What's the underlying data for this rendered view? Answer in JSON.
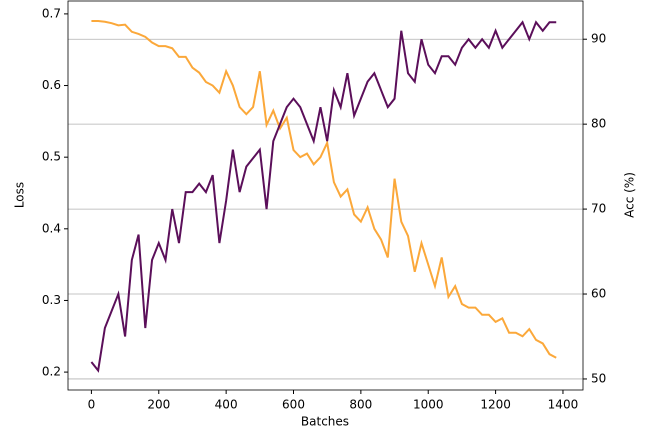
{
  "chart_data": {
    "type": "line",
    "xlabel": "Batches",
    "ylabel": "Loss",
    "y2label": "Acc (%)",
    "x": [
      0,
      20,
      40,
      60,
      80,
      100,
      120,
      140,
      160,
      180,
      200,
      220,
      240,
      260,
      280,
      300,
      320,
      340,
      360,
      380,
      400,
      420,
      440,
      460,
      480,
      500,
      520,
      540,
      560,
      580,
      600,
      620,
      640,
      660,
      680,
      700,
      720,
      740,
      760,
      780,
      800,
      820,
      840,
      860,
      880,
      900,
      920,
      940,
      960,
      980,
      1000,
      1020,
      1040,
      1060,
      1080,
      1100,
      1120,
      1140,
      1160,
      1180,
      1200,
      1220,
      1240,
      1260,
      1280,
      1300,
      1320,
      1340,
      1360,
      1380
    ],
    "series": [
      {
        "name": "Loss",
        "color": "#fba83a",
        "axis": "y",
        "values": [
          0.69,
          0.69,
          0.689,
          0.687,
          0.684,
          0.685,
          0.675,
          0.672,
          0.668,
          0.66,
          0.655,
          0.655,
          0.652,
          0.64,
          0.64,
          0.625,
          0.618,
          0.605,
          0.6,
          0.59,
          0.62,
          0.6,
          0.57,
          0.56,
          0.57,
          0.62,
          0.545,
          0.565,
          0.54,
          0.555,
          0.51,
          0.5,
          0.505,
          0.49,
          0.5,
          0.52,
          0.465,
          0.445,
          0.455,
          0.42,
          0.41,
          0.43,
          0.4,
          0.385,
          0.36,
          0.47,
          0.41,
          0.39,
          0.34,
          0.38,
          0.35,
          0.32,
          0.36,
          0.305,
          0.32,
          0.295,
          0.29,
          0.29,
          0.28,
          0.28,
          0.27,
          0.275,
          0.255,
          0.255,
          0.25,
          0.26,
          0.245,
          0.24,
          0.225,
          0.22
        ]
      },
      {
        "name": "Acc (%)",
        "color": "#5b0f5a",
        "axis": "y2",
        "values": [
          52,
          51,
          56,
          58,
          60,
          55,
          64,
          67,
          56,
          64,
          66,
          64,
          70,
          66,
          72,
          72,
          73,
          72,
          74,
          66,
          71,
          77,
          72,
          75,
          76,
          77,
          70,
          78,
          80,
          82,
          83,
          82,
          80,
          78,
          82,
          78,
          84,
          82,
          86,
          81,
          83,
          85,
          86,
          84,
          82,
          83,
          91,
          86,
          85,
          90,
          87,
          86,
          88,
          88,
          87,
          89,
          90,
          89,
          90,
          89,
          91,
          89,
          90,
          91,
          92,
          90,
          92,
          91,
          92,
          92
        ]
      }
    ],
    "xlim": [
      -69.5,
      1459.5
    ],
    "xticks": [
      0,
      200,
      400,
      600,
      800,
      1000,
      1200,
      1400
    ],
    "ylim": [
      0.175,
      0.718
    ],
    "yticks": [
      0.2,
      0.3,
      0.4,
      0.5,
      0.6,
      0.7
    ],
    "y2lim": [
      48.7,
      94.5
    ],
    "y2ticks": [
      50,
      60,
      70,
      80,
      90
    ],
    "grid": "y2"
  }
}
